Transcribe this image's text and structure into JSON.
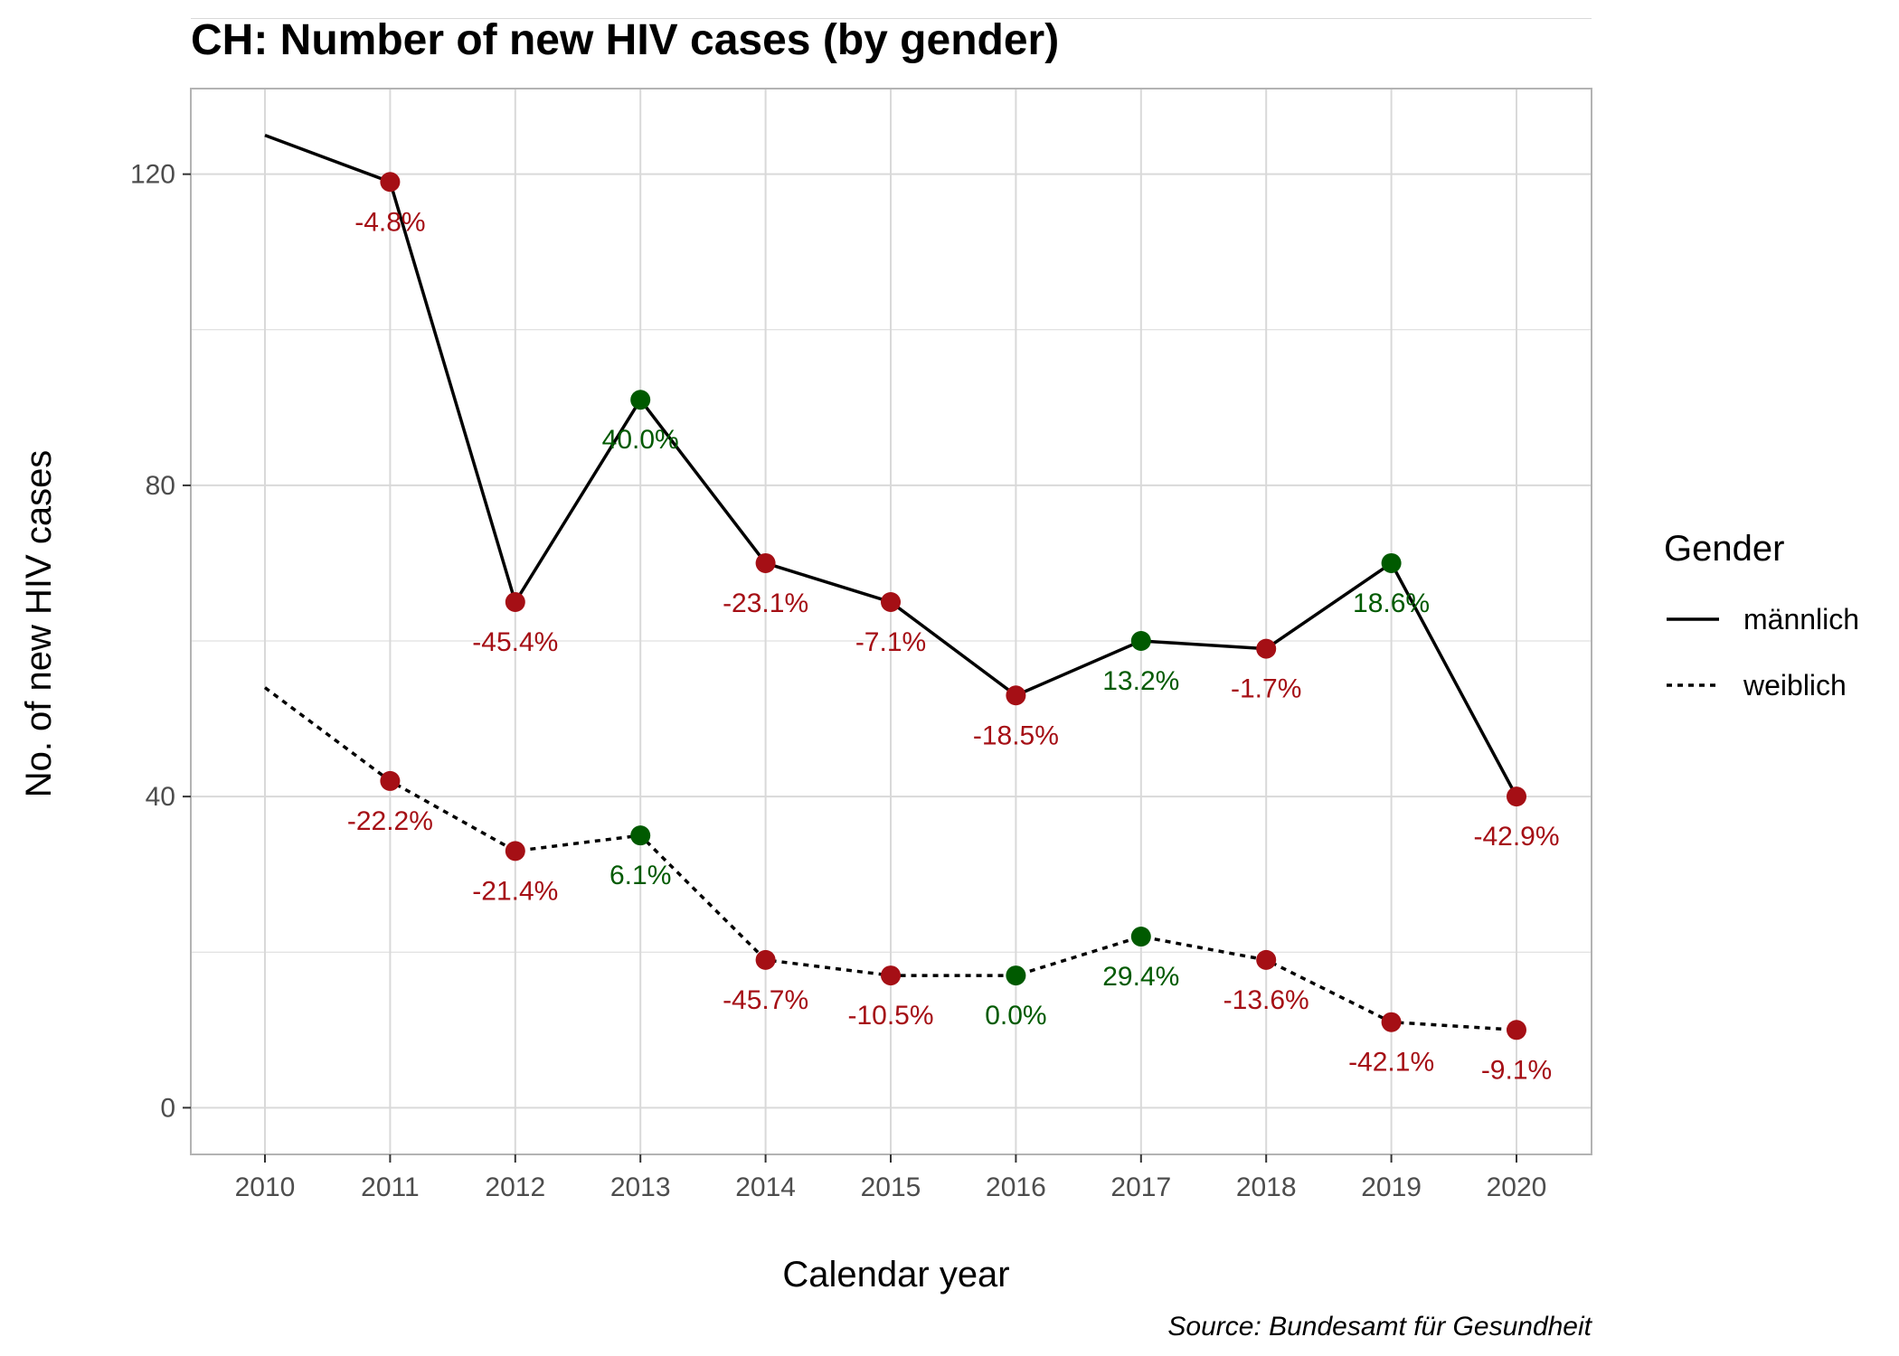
{
  "colors": {
    "decrease": "#a50f15",
    "increase": "#005a00",
    "line": "#000000",
    "grid": "#d9d9d9",
    "panel_border": "#b3b3b3"
  },
  "chart_data": {
    "type": "line",
    "title": "CH: Number of new HIV cases (by gender)",
    "xlabel": "Calendar year",
    "ylabel": "No. of new HIV cases",
    "caption": "Source: Bundesamt für Gesundheit",
    "x": [
      2010,
      2011,
      2012,
      2013,
      2014,
      2015,
      2016,
      2017,
      2018,
      2019,
      2020
    ],
    "ylim": [
      -6,
      131
    ],
    "yticks": [
      0,
      40,
      80,
      120
    ],
    "grid": true,
    "legend": {
      "title": "Gender",
      "placement": "right"
    },
    "series": [
      {
        "name": "männlich",
        "line_style": "solid",
        "values": [
          125,
          119,
          65,
          91,
          70,
          65,
          53,
          60,
          59,
          70,
          40
        ],
        "labels": [
          null,
          "-4.8%",
          "-45.4%",
          "40.0%",
          "-23.1%",
          "-7.1%",
          "-18.5%",
          "13.2%",
          "-1.7%",
          "18.6%",
          "-42.9%"
        ]
      },
      {
        "name": "weiblich",
        "line_style": "dotted",
        "values": [
          54,
          42,
          33,
          35,
          19,
          17,
          17,
          22,
          19,
          11,
          10
        ],
        "labels": [
          null,
          "-22.2%",
          "-21.4%",
          "6.1%",
          "-45.7%",
          "-10.5%",
          "0.0%",
          "29.4%",
          "-13.6%",
          "-42.1%",
          "-9.1%"
        ]
      }
    ]
  }
}
